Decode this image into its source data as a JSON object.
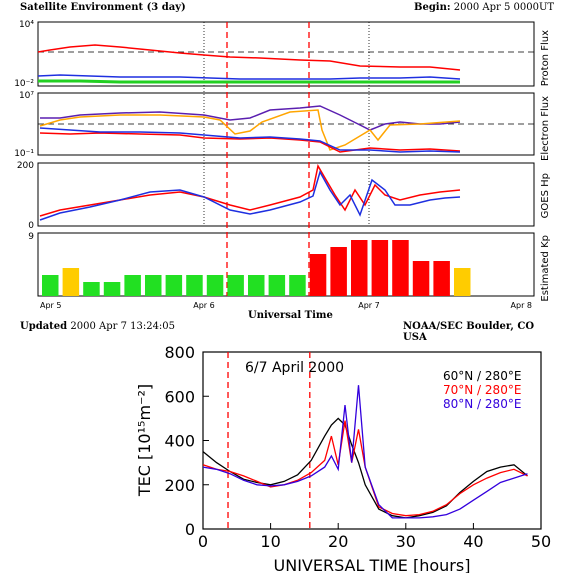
{
  "header": {
    "title": "Satellite Environment (3 day)",
    "begin_label": "Begin:",
    "begin_value": "2000 Apr 5 0000UT"
  },
  "footer": {
    "updated_label": "Updated",
    "updated_value": "2000 Apr  7 13:24:05",
    "credit": "NOAA/SEC Boulder, CO USA",
    "xlabel": "Universal Time"
  },
  "top_panels": {
    "x_ticks": [
      "Apr 5",
      "Apr 6",
      "Apr 7",
      "Apr 8"
    ],
    "proton": {
      "ylabel": "Proton Flux",
      "y_top": "10⁴",
      "y_bottom": "10⁻²"
    },
    "electron": {
      "ylabel": "Electron Flux",
      "y_top": "10⁷",
      "y_bottom": "10⁻¹"
    },
    "goes": {
      "ylabel": "GOES Hp",
      "y_top": "200",
      "y_bottom": "0"
    },
    "kp": {
      "ylabel": "Estimated Kp",
      "y_top": "9",
      "y_bottom": "0",
      "values": [
        3,
        4,
        2,
        2,
        3,
        3,
        3,
        3,
        3,
        3,
        3,
        3,
        3,
        6,
        7,
        8,
        8,
        8,
        5,
        5,
        4
      ],
      "colors": [
        "#22e022",
        "#ffcc00",
        "#22e022",
        "#22e022",
        "#22e022",
        "#22e022",
        "#22e022",
        "#22e022",
        "#22e022",
        "#22e022",
        "#22e022",
        "#22e022",
        "#22e022",
        "#ff0000",
        "#ff0000",
        "#ff0000",
        "#ff0000",
        "#ff0000",
        "#ff0000",
        "#ff0000",
        "#ffcc00"
      ]
    }
  },
  "chart_data": {
    "type": "line",
    "title": "6/7 April 2000",
    "xlabel": "UNIVERSAL TIME [hours]",
    "ylabel": "TEC [10¹⁵m⁻²]",
    "xlim": [
      0,
      50
    ],
    "ylim": [
      0,
      800
    ],
    "x_ticks": [
      "0",
      "10",
      "20",
      "30",
      "40",
      "50"
    ],
    "y_ticks": [
      "0",
      "200",
      "400",
      "600",
      "800"
    ],
    "vlines_hours": [
      3.7,
      15.8
    ],
    "series": [
      {
        "name": "60°N / 280°E",
        "color": "#000000",
        "x": [
          0,
          2,
          4,
          6,
          8,
          10,
          12,
          14,
          16,
          18,
          19,
          20,
          21,
          22,
          23,
          24,
          26,
          28,
          30,
          32,
          34,
          36,
          38,
          40,
          42,
          44,
          46,
          48
        ],
        "y": [
          350,
          300,
          260,
          225,
          210,
          200,
          215,
          245,
          310,
          420,
          470,
          500,
          470,
          380,
          300,
          200,
          90,
          60,
          50,
          60,
          75,
          105,
          165,
          215,
          260,
          280,
          290,
          240
        ]
      },
      {
        "name": "70°N / 280°E",
        "color": "#ff0000",
        "x": [
          0,
          2,
          4,
          6,
          8,
          10,
          12,
          14,
          16,
          18,
          19,
          20,
          21,
          22,
          23,
          24,
          26,
          28,
          30,
          32,
          34,
          36,
          38,
          40,
          42,
          44,
          46,
          48
        ],
        "y": [
          290,
          270,
          260,
          240,
          215,
          190,
          200,
          220,
          255,
          310,
          420,
          290,
          490,
          300,
          450,
          280,
          100,
          70,
          60,
          65,
          80,
          110,
          160,
          200,
          230,
          255,
          270,
          240
        ]
      },
      {
        "name": "80°N / 280°E",
        "color": "#3300dd",
        "x": [
          0,
          2,
          4,
          6,
          8,
          10,
          12,
          14,
          16,
          18,
          19,
          20,
          21,
          22,
          23,
          24,
          26,
          28,
          30,
          32,
          34,
          36,
          38,
          40,
          42,
          44,
          46,
          48
        ],
        "y": [
          280,
          270,
          250,
          220,
          200,
          195,
          200,
          215,
          240,
          280,
          330,
          270,
          560,
          300,
          650,
          280,
          110,
          50,
          50,
          50,
          55,
          65,
          90,
          130,
          170,
          210,
          230,
          250
        ]
      }
    ]
  }
}
